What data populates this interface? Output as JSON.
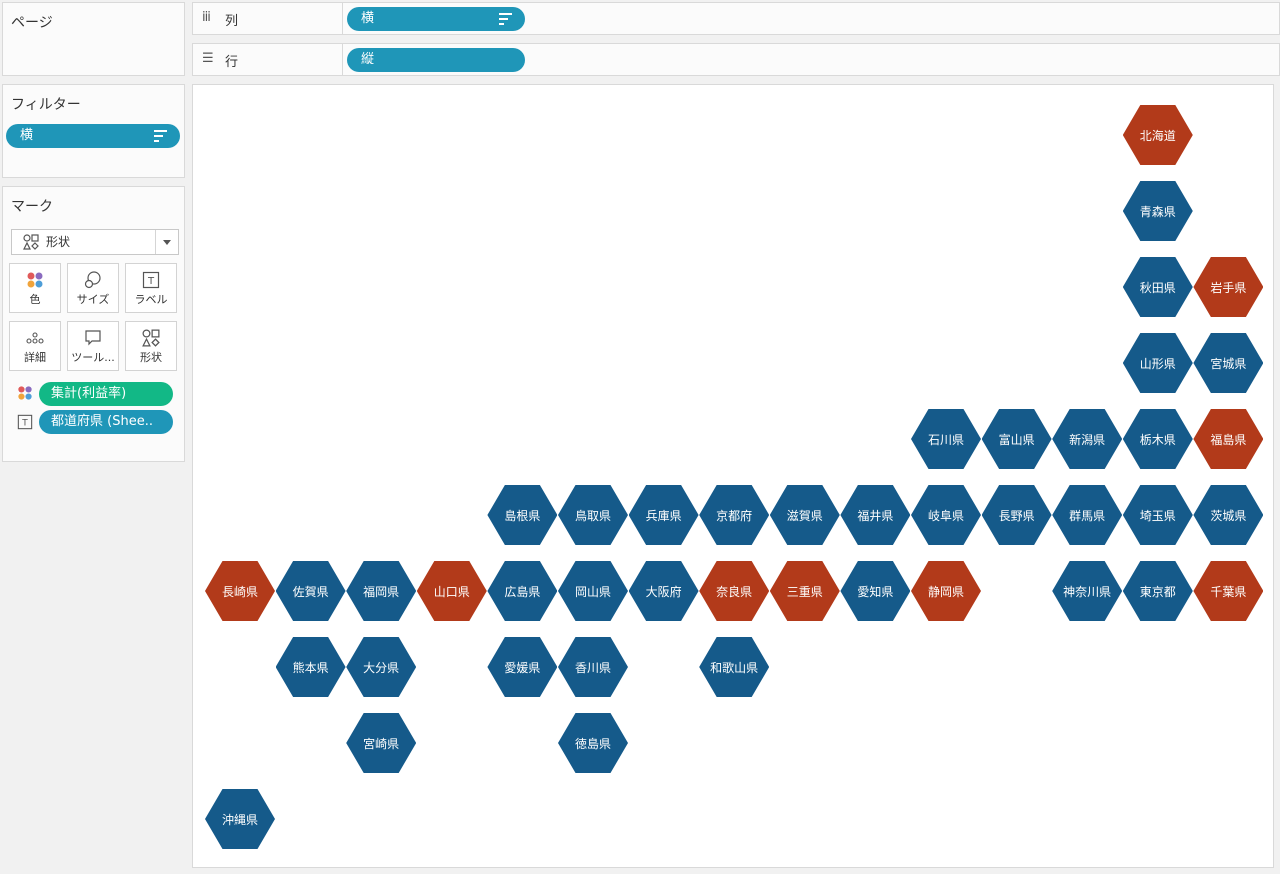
{
  "pages_card": {
    "title": "ページ"
  },
  "shelves": {
    "columns": {
      "label": "列",
      "pill": "横"
    },
    "rows": {
      "label": "行",
      "pill": "縦"
    }
  },
  "filters_card": {
    "title": "フィルター",
    "pill": "横"
  },
  "marks_card": {
    "title": "マーク",
    "mark_type": "形状",
    "buttons": [
      {
        "label": "色",
        "icon": "color-icon"
      },
      {
        "label": "サイズ",
        "icon": "size-icon"
      },
      {
        "label": "ラベル",
        "icon": "label-icon"
      },
      {
        "label": "詳細",
        "icon": "detail-icon"
      },
      {
        "label": "ツール...",
        "icon": "tooltip-icon"
      },
      {
        "label": "形状",
        "icon": "shape-icon"
      }
    ],
    "fields": [
      {
        "icon": "color-icon",
        "label": "集計(利益率)",
        "color": "#12b886"
      },
      {
        "icon": "label-icon",
        "label": "都道府県 (Shee..",
        "color": "#1f96b8"
      }
    ]
  },
  "colors": {
    "negative": "#b23a1a",
    "positive": "#155a8a",
    "pill_blue": "#1f96b8",
    "pill_green": "#12b886"
  },
  "tiles": [
    {
      "name": "北海道",
      "col": 13,
      "row": 0,
      "status": "negative"
    },
    {
      "name": "青森県",
      "col": 13,
      "row": 1,
      "status": "positive"
    },
    {
      "name": "秋田県",
      "col": 13,
      "row": 2,
      "status": "positive"
    },
    {
      "name": "岩手県",
      "col": 14,
      "row": 2,
      "status": "negative"
    },
    {
      "name": "山形県",
      "col": 13,
      "row": 3,
      "status": "positive"
    },
    {
      "name": "宮城県",
      "col": 14,
      "row": 3,
      "status": "positive"
    },
    {
      "name": "石川県",
      "col": 10,
      "row": 4,
      "status": "positive"
    },
    {
      "name": "富山県",
      "col": 11,
      "row": 4,
      "status": "positive"
    },
    {
      "name": "新潟県",
      "col": 12,
      "row": 4,
      "status": "positive"
    },
    {
      "name": "栃木県",
      "col": 13,
      "row": 4,
      "status": "positive"
    },
    {
      "name": "福島県",
      "col": 14,
      "row": 4,
      "status": "negative"
    },
    {
      "name": "島根県",
      "col": 4,
      "row": 5,
      "status": "positive"
    },
    {
      "name": "鳥取県",
      "col": 5,
      "row": 5,
      "status": "positive"
    },
    {
      "name": "兵庫県",
      "col": 6,
      "row": 5,
      "status": "positive"
    },
    {
      "name": "京都府",
      "col": 7,
      "row": 5,
      "status": "positive"
    },
    {
      "name": "滋賀県",
      "col": 8,
      "row": 5,
      "status": "positive"
    },
    {
      "name": "福井県",
      "col": 9,
      "row": 5,
      "status": "positive"
    },
    {
      "name": "岐阜県",
      "col": 10,
      "row": 5,
      "status": "positive"
    },
    {
      "name": "長野県",
      "col": 11,
      "row": 5,
      "status": "positive"
    },
    {
      "name": "群馬県",
      "col": 12,
      "row": 5,
      "status": "positive"
    },
    {
      "name": "埼玉県",
      "col": 13,
      "row": 5,
      "status": "positive"
    },
    {
      "name": "茨城県",
      "col": 14,
      "row": 5,
      "status": "positive"
    },
    {
      "name": "長崎県",
      "col": 0,
      "row": 6,
      "status": "negative"
    },
    {
      "name": "佐賀県",
      "col": 1,
      "row": 6,
      "status": "positive"
    },
    {
      "name": "福岡県",
      "col": 2,
      "row": 6,
      "status": "positive"
    },
    {
      "name": "山口県",
      "col": 3,
      "row": 6,
      "status": "negative"
    },
    {
      "name": "広島県",
      "col": 4,
      "row": 6,
      "status": "positive"
    },
    {
      "name": "岡山県",
      "col": 5,
      "row": 6,
      "status": "positive"
    },
    {
      "name": "大阪府",
      "col": 6,
      "row": 6,
      "status": "positive"
    },
    {
      "name": "奈良県",
      "col": 7,
      "row": 6,
      "status": "negative"
    },
    {
      "name": "三重県",
      "col": 8,
      "row": 6,
      "status": "negative"
    },
    {
      "name": "愛知県",
      "col": 9,
      "row": 6,
      "status": "positive"
    },
    {
      "name": "静岡県",
      "col": 10,
      "row": 6,
      "status": "negative"
    },
    {
      "name": "神奈川県",
      "col": 12,
      "row": 6,
      "status": "positive"
    },
    {
      "name": "東京都",
      "col": 13,
      "row": 6,
      "status": "positive"
    },
    {
      "name": "千葉県",
      "col": 14,
      "row": 6,
      "status": "negative"
    },
    {
      "name": "熊本県",
      "col": 1,
      "row": 7,
      "status": "positive"
    },
    {
      "name": "大分県",
      "col": 2,
      "row": 7,
      "status": "positive"
    },
    {
      "name": "愛媛県",
      "col": 4,
      "row": 7,
      "status": "positive"
    },
    {
      "name": "香川県",
      "col": 5,
      "row": 7,
      "status": "positive"
    },
    {
      "name": "和歌山県",
      "col": 7,
      "row": 7,
      "status": "positive"
    },
    {
      "name": "宮崎県",
      "col": 2,
      "row": 8,
      "status": "positive"
    },
    {
      "name": "徳島県",
      "col": 5,
      "row": 8,
      "status": "positive"
    },
    {
      "name": "沖縄県",
      "col": 0,
      "row": 9,
      "status": "positive"
    }
  ]
}
